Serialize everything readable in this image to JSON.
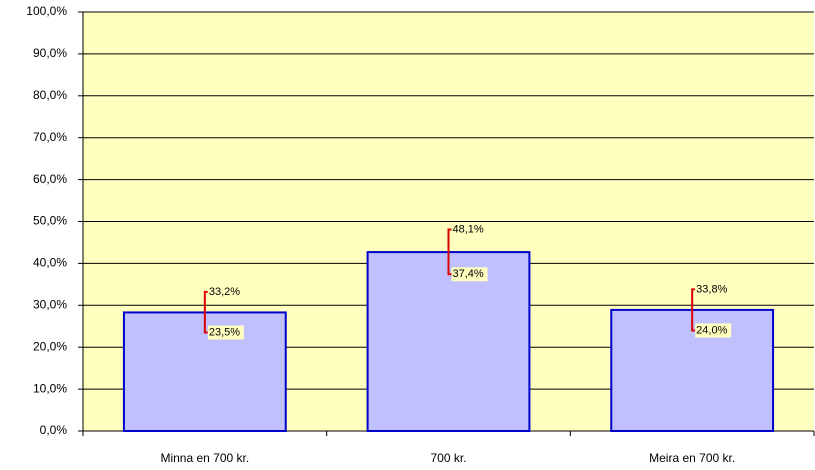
{
  "chart_data": {
    "type": "bar",
    "categories": [
      "Minna en 700 kr.",
      "700 kr.",
      "Meira en 700 kr."
    ],
    "values": [
      28.3,
      42.7,
      28.9
    ],
    "color": "#c0c0ff",
    "edge_color": "#0000cc",
    "plot_background": "#ffffc0",
    "error_color": "#dd0000",
    "low": [
      23.5,
      37.4,
      24.0
    ],
    "low_labels": [
      "23,5%",
      "37,4%",
      "24,0%"
    ],
    "high": [
      33.2,
      48.1,
      33.8
    ],
    "high_labels": [
      "33,2%",
      "48,1%",
      "33,8%"
    ],
    "ylim": [
      0,
      100
    ],
    "yticks": [
      {
        "value": 0,
        "label": "0,0%"
      },
      {
        "value": 10,
        "label": "10,0%"
      },
      {
        "value": 20,
        "label": "20,0%"
      },
      {
        "value": 30,
        "label": "30,0%"
      },
      {
        "value": 40,
        "label": "40,0%"
      },
      {
        "value": 50,
        "label": "50,0%"
      },
      {
        "value": 60,
        "label": "60,0%"
      },
      {
        "value": 70,
        "label": "70,0%"
      },
      {
        "value": 80,
        "label": "80,0%"
      },
      {
        "value": 90,
        "label": "90,0%"
      },
      {
        "value": 100,
        "label": "100,0%"
      }
    ],
    "grid": true
  }
}
